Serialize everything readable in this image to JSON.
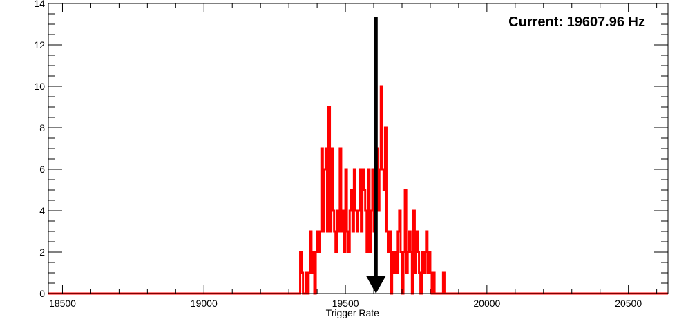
{
  "chart_data": {
    "type": "histogram",
    "xlabel": "Trigger Rate",
    "ylabel": "",
    "title": "",
    "xlim": [
      18450,
      20640
    ],
    "ylim": [
      0,
      14
    ],
    "x_ticks": [
      18500,
      19000,
      19500,
      20000,
      20500
    ],
    "x_tick_labels": [
      "18500",
      "19000",
      "19500",
      "20000",
      "20500"
    ],
    "y_ticks": [
      0,
      2,
      4,
      6,
      8,
      10,
      12,
      14
    ],
    "y_tick_labels": [
      "0",
      "2",
      "4",
      "6",
      "8",
      "10",
      "12",
      "14"
    ],
    "grid": false,
    "legend": "none",
    "line_color": "#ff0000",
    "bin_width": 5,
    "series": [
      {
        "bins": [
          [
            19340,
            2
          ],
          [
            19345,
            1
          ],
          [
            19350,
            0
          ],
          [
            19360,
            1
          ],
          [
            19365,
            0
          ],
          [
            19370,
            1
          ],
          [
            19375,
            3
          ],
          [
            19380,
            1
          ],
          [
            19385,
            2
          ],
          [
            19390,
            0
          ],
          [
            19395,
            2
          ],
          [
            19400,
            3
          ],
          [
            19405,
            2
          ],
          [
            19410,
            3
          ],
          [
            19415,
            7
          ],
          [
            19420,
            3
          ],
          [
            19425,
            6
          ],
          [
            19430,
            7
          ],
          [
            19435,
            3
          ],
          [
            19440,
            9
          ],
          [
            19445,
            3
          ],
          [
            19450,
            7
          ],
          [
            19455,
            4
          ],
          [
            19460,
            3
          ],
          [
            19465,
            2
          ],
          [
            19470,
            4
          ],
          [
            19475,
            3
          ],
          [
            19480,
            7
          ],
          [
            19485,
            3
          ],
          [
            19490,
            4
          ],
          [
            19495,
            2
          ],
          [
            19500,
            6
          ],
          [
            19505,
            3
          ],
          [
            19510,
            2
          ],
          [
            19515,
            4
          ],
          [
            19520,
            5
          ],
          [
            19525,
            3
          ],
          [
            19530,
            6
          ],
          [
            19535,
            4
          ],
          [
            19540,
            3
          ],
          [
            19545,
            4
          ],
          [
            19550,
            6
          ],
          [
            19555,
            3
          ],
          [
            19560,
            6
          ],
          [
            19565,
            5
          ],
          [
            19570,
            4
          ],
          [
            19575,
            2
          ],
          [
            19580,
            6
          ],
          [
            19585,
            2
          ],
          [
            19590,
            4
          ],
          [
            19595,
            6
          ],
          [
            19600,
            3
          ],
          [
            19605,
            6
          ],
          [
            19610,
            7
          ],
          [
            19615,
            4
          ],
          [
            19620,
            6
          ],
          [
            19625,
            10
          ],
          [
            19630,
            6
          ],
          [
            19635,
            5
          ],
          [
            19640,
            8
          ],
          [
            19645,
            3
          ],
          [
            19650,
            2
          ],
          [
            19655,
            3
          ],
          [
            19660,
            0
          ],
          [
            19665,
            2
          ],
          [
            19670,
            1
          ],
          [
            19675,
            2
          ],
          [
            19680,
            1
          ],
          [
            19685,
            3
          ],
          [
            19690,
            4
          ],
          [
            19695,
            2
          ],
          [
            19700,
            0
          ],
          [
            19705,
            2
          ],
          [
            19710,
            5
          ],
          [
            19715,
            1
          ],
          [
            19720,
            2
          ],
          [
            19725,
            3
          ],
          [
            19730,
            2
          ],
          [
            19735,
            0
          ],
          [
            19740,
            4
          ],
          [
            19745,
            1
          ],
          [
            19750,
            3
          ],
          [
            19755,
            2
          ],
          [
            19760,
            1
          ],
          [
            19765,
            0
          ],
          [
            19770,
            2
          ],
          [
            19775,
            1
          ],
          [
            19780,
            2
          ],
          [
            19785,
            3
          ],
          [
            19790,
            1
          ],
          [
            19795,
            2
          ],
          [
            19800,
            1
          ],
          [
            19805,
            0
          ],
          [
            19810,
            1
          ],
          [
            19815,
            0
          ],
          [
            19820,
            0
          ],
          [
            19825,
            0
          ],
          [
            19830,
            0
          ],
          [
            19835,
            0
          ],
          [
            19840,
            0
          ],
          [
            19845,
            1
          ]
        ]
      }
    ],
    "marker": {
      "x": 19607.96,
      "label": "Current: 19607.96 Hz",
      "color": "#000000"
    }
  }
}
